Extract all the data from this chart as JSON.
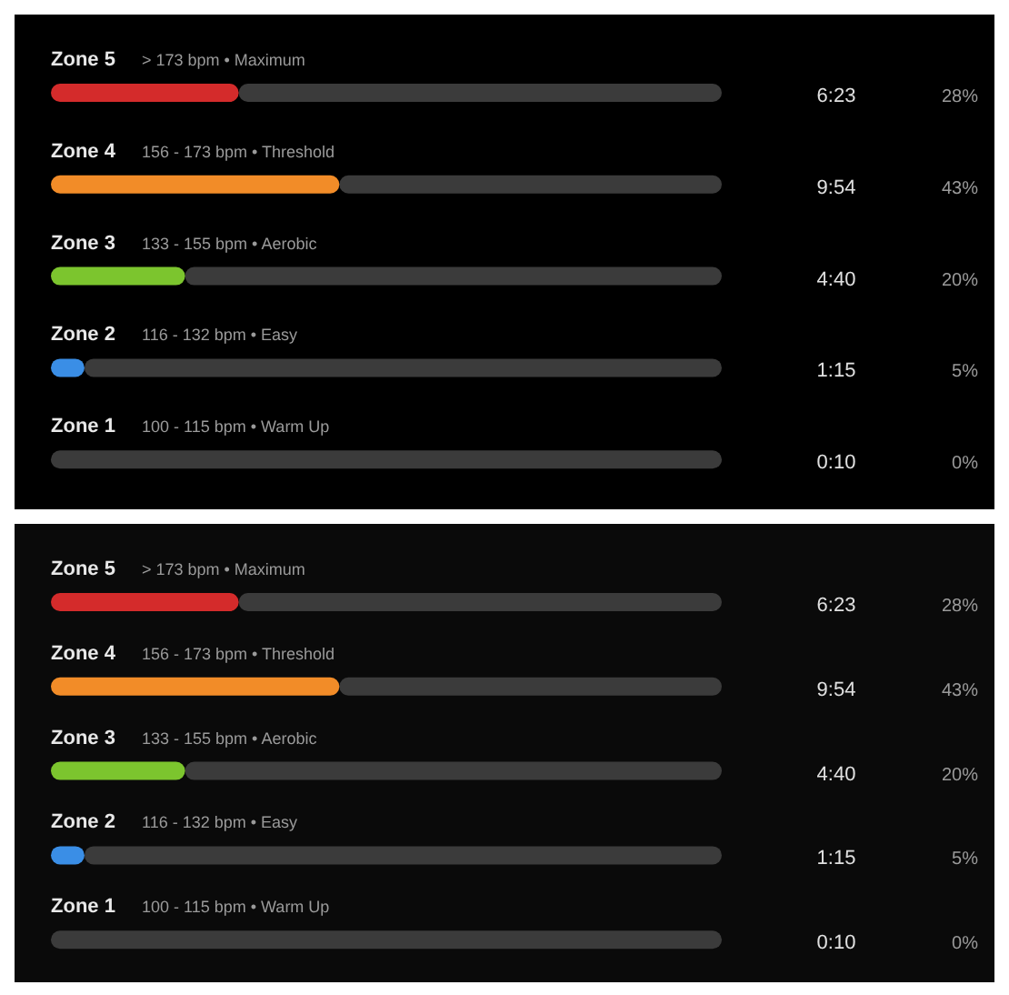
{
  "chart_data": [
    {
      "type": "bar",
      "orientation": "horizontal",
      "stacked": true,
      "categories": [
        "Zone 5",
        "Zone 4",
        "Zone 3",
        "Zone 2",
        "Zone 1"
      ],
      "xlim": [
        0,
        100
      ],
      "tick_labels": "y",
      "series": [
        {
          "colors": [
            "#d42b2b",
            "#f28c28",
            "#7cc52e",
            "#3a8ee6",
            "#8a8a8a"
          ],
          "values": [
            28,
            43,
            20,
            5,
            0
          ],
          "value_labels": [
            "28%",
            "43%",
            "20%",
            "5%",
            "0%"
          ]
        },
        {
          "color": "#3b3b3b",
          "values": [
            72,
            57,
            80,
            95,
            100
          ]
        }
      ],
      "annotations": [
        "> 173 bpm • Maximum",
        "156 - 173 bpm • Threshold",
        "133 - 155 bpm • Aerobic",
        "116 - 132 bpm • Easy",
        "100 - 115 bpm • Warm Up",
        "6:23",
        "9:54",
        "4:40",
        "1:15",
        "0:10"
      ]
    },
    {
      "type": "bar",
      "orientation": "horizontal",
      "stacked": true,
      "categories": [
        "Zone 5",
        "Zone 4",
        "Zone 3",
        "Zone 2",
        "Zone 1"
      ],
      "xlim": [
        0,
        100
      ],
      "tick_labels": "y",
      "series": [
        {
          "colors": [
            "#d42b2b",
            "#f28c28",
            "#7cc52e",
            "#3a8ee6",
            "#8a8a8a"
          ],
          "values": [
            28,
            43,
            20,
            5,
            0
          ],
          "value_labels": [
            "28%",
            "43%",
            "20%",
            "5%",
            "0%"
          ]
        },
        {
          "color": "#3b3b3b",
          "values": [
            72,
            57,
            80,
            95,
            100
          ]
        }
      ],
      "annotations": [
        "> 173 bpm • Maximum",
        "156 - 173 bpm • Threshold",
        "133 - 155 bpm • Aerobic",
        "116 - 132 bpm • Easy",
        "100 - 115 bpm • Warm Up",
        "6:23",
        "9:54",
        "4:40",
        "1:15",
        "0:10"
      ]
    }
  ]
}
